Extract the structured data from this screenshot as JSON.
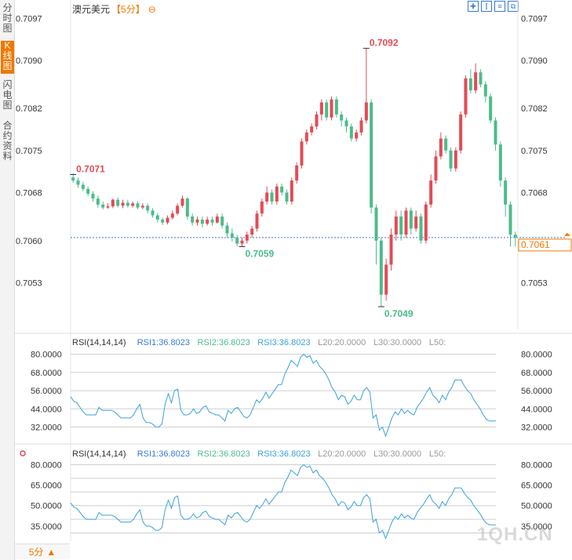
{
  "sidebar": {
    "tabs": [
      {
        "label": "分时图",
        "active": false
      },
      {
        "label": "K线图",
        "active": true
      },
      {
        "label": "闪电图",
        "active": false
      },
      {
        "label": "合约资料",
        "active": false
      }
    ]
  },
  "header": {
    "symbol": "澳元美元",
    "period": "【5分】",
    "zoom_symbol": "⊖"
  },
  "period_button": {
    "label": "5分",
    "arrow": "▲"
  },
  "watermark": "1QH.CN",
  "colors": {
    "up": "#e24b55",
    "down": "#4dbb8a",
    "rsi_line": "#3aa3d8",
    "accent": "#f07800"
  },
  "chart_data": [
    {
      "type": "candlestick",
      "title": "澳元美元【5分】",
      "ylim": [
        0.7046,
        0.7099
      ],
      "y_ticks_left": [
        "0.7097",
        "0.7090",
        "0.7082",
        "0.7075",
        "0.7068",
        "0.7060",
        "0.7053"
      ],
      "y_ticks_right": [
        "0.7097",
        "0.7090",
        "0.7082",
        "0.7075",
        "0.7068",
        "0.7053"
      ],
      "current_price_label": "0.7061",
      "current_price": 0.70605,
      "annotations": [
        {
          "label": "0.7071",
          "x_index": 0,
          "price": 0.7071,
          "color": "up"
        },
        {
          "label": "0.7092",
          "x_index": 59,
          "price": 0.7092,
          "color": "up"
        },
        {
          "label": "0.7059",
          "x_index": 34,
          "price": 0.7059,
          "color": "down"
        },
        {
          "label": "0.7049",
          "x_index": 62,
          "price": 0.7049,
          "color": "down"
        }
      ],
      "candles": [
        [
          0.70705,
          0.707,
          0.70712,
          0.70696
        ],
        [
          0.707,
          0.70693,
          0.70705,
          0.70688
        ],
        [
          0.70693,
          0.70686,
          0.70698,
          0.70682
        ],
        [
          0.70686,
          0.70678,
          0.7069,
          0.70674
        ],
        [
          0.70678,
          0.7067,
          0.70682,
          0.70665
        ],
        [
          0.7067,
          0.7066,
          0.70675,
          0.70655
        ],
        [
          0.7066,
          0.70655,
          0.70665,
          0.70652
        ],
        [
          0.70655,
          0.70657,
          0.70662,
          0.70653
        ],
        [
          0.70657,
          0.70668,
          0.7067,
          0.70654
        ],
        [
          0.70668,
          0.70658,
          0.70672,
          0.70655
        ],
        [
          0.70658,
          0.70663,
          0.70668,
          0.70654
        ],
        [
          0.70663,
          0.70658,
          0.70668,
          0.70655
        ],
        [
          0.70658,
          0.70662,
          0.70665,
          0.70655
        ],
        [
          0.70662,
          0.70655,
          0.70666,
          0.70652
        ],
        [
          0.70655,
          0.70658,
          0.70662,
          0.70652
        ],
        [
          0.70658,
          0.7065,
          0.70662,
          0.70645
        ],
        [
          0.7065,
          0.70642,
          0.70654,
          0.70638
        ],
        [
          0.70642,
          0.70635,
          0.70646,
          0.7063
        ],
        [
          0.70635,
          0.7063,
          0.70638,
          0.70626
        ],
        [
          0.7063,
          0.70638,
          0.70642,
          0.70627
        ],
        [
          0.70638,
          0.70645,
          0.7065,
          0.70635
        ],
        [
          0.70645,
          0.70658,
          0.70662,
          0.70642
        ],
        [
          0.70658,
          0.7067,
          0.70675,
          0.70655
        ],
        [
          0.7067,
          0.7064,
          0.70672,
          0.70635
        ],
        [
          0.7064,
          0.7063,
          0.70645,
          0.70625
        ],
        [
          0.7063,
          0.70635,
          0.7064,
          0.70625
        ],
        [
          0.70635,
          0.70628,
          0.7064,
          0.70622
        ],
        [
          0.70628,
          0.70635,
          0.7064,
          0.70625
        ],
        [
          0.70635,
          0.7063,
          0.7064,
          0.70625
        ],
        [
          0.7063,
          0.7064,
          0.70645,
          0.70628
        ],
        [
          0.7064,
          0.70625,
          0.70645,
          0.7062
        ],
        [
          0.70625,
          0.70612,
          0.7063,
          0.70605
        ],
        [
          0.70612,
          0.70605,
          0.7062,
          0.70598
        ],
        [
          0.70605,
          0.70595,
          0.7061,
          0.7059
        ],
        [
          0.70595,
          0.706,
          0.70605,
          0.7059
        ],
        [
          0.706,
          0.7061,
          0.70615,
          0.70595
        ],
        [
          0.7061,
          0.7062,
          0.70625,
          0.70605
        ],
        [
          0.7062,
          0.70645,
          0.7065,
          0.70615
        ],
        [
          0.70645,
          0.70665,
          0.7067,
          0.7064
        ],
        [
          0.70665,
          0.7068,
          0.7069,
          0.7066
        ],
        [
          0.7068,
          0.70665,
          0.70685,
          0.7066
        ],
        [
          0.70665,
          0.7069,
          0.70695,
          0.7066
        ],
        [
          0.7069,
          0.7068,
          0.70695,
          0.70675
        ],
        [
          0.7068,
          0.70665,
          0.70685,
          0.7066
        ],
        [
          0.70665,
          0.707,
          0.70705,
          0.7066
        ],
        [
          0.707,
          0.70725,
          0.7073,
          0.70695
        ],
        [
          0.70725,
          0.70765,
          0.7077,
          0.7072
        ],
        [
          0.70765,
          0.7078,
          0.70785,
          0.7076
        ],
        [
          0.7078,
          0.7079,
          0.70795,
          0.70775
        ],
        [
          0.7079,
          0.7081,
          0.70815,
          0.70785
        ],
        [
          0.7081,
          0.7083,
          0.70835,
          0.708
        ],
        [
          0.7083,
          0.70805,
          0.70835,
          0.708
        ],
        [
          0.70805,
          0.70835,
          0.7084,
          0.708
        ],
        [
          0.70835,
          0.7081,
          0.7084,
          0.70805
        ],
        [
          0.7081,
          0.708,
          0.70815,
          0.7079
        ],
        [
          0.708,
          0.7079,
          0.70805,
          0.7078
        ],
        [
          0.7079,
          0.7077,
          0.70795,
          0.70765
        ],
        [
          0.7077,
          0.7078,
          0.70785,
          0.70765
        ],
        [
          0.7078,
          0.708,
          0.70805,
          0.70775
        ],
        [
          0.708,
          0.7083,
          0.7092,
          0.70795
        ],
        [
          0.7083,
          0.70655,
          0.70835,
          0.70645
        ],
        [
          0.70655,
          0.706,
          0.7066,
          0.7056
        ],
        [
          0.706,
          0.7051,
          0.70605,
          0.7049
        ],
        [
          0.7051,
          0.7056,
          0.7057,
          0.705
        ],
        [
          0.7056,
          0.7061,
          0.7062,
          0.7055
        ],
        [
          0.7061,
          0.7064,
          0.7065,
          0.706
        ],
        [
          0.7064,
          0.7061,
          0.7065,
          0.706
        ],
        [
          0.7061,
          0.7065,
          0.70655,
          0.70605
        ],
        [
          0.7065,
          0.7062,
          0.70655,
          0.7061
        ],
        [
          0.7062,
          0.7064,
          0.7065,
          0.70615
        ],
        [
          0.7064,
          0.706,
          0.70645,
          0.70595
        ],
        [
          0.706,
          0.7066,
          0.70665,
          0.70595
        ],
        [
          0.7066,
          0.707,
          0.7071,
          0.70655
        ],
        [
          0.707,
          0.7074,
          0.7075,
          0.70695
        ],
        [
          0.7074,
          0.7077,
          0.7078,
          0.70735
        ],
        [
          0.7077,
          0.7075,
          0.70775,
          0.70745
        ],
        [
          0.7075,
          0.7072,
          0.70755,
          0.70715
        ],
        [
          0.7072,
          0.7075,
          0.70755,
          0.70715
        ],
        [
          0.7075,
          0.7081,
          0.70815,
          0.70745
        ],
        [
          0.7081,
          0.7087,
          0.70875,
          0.70805
        ],
        [
          0.7087,
          0.7085,
          0.70885,
          0.70845
        ],
        [
          0.7085,
          0.7088,
          0.70895,
          0.70845
        ],
        [
          0.7088,
          0.7086,
          0.70885,
          0.70855
        ],
        [
          0.7086,
          0.7084,
          0.70865,
          0.7083
        ],
        [
          0.7084,
          0.708,
          0.70845,
          0.70795
        ],
        [
          0.708,
          0.7076,
          0.70805,
          0.7075
        ],
        [
          0.7076,
          0.707,
          0.70765,
          0.7069
        ],
        [
          0.707,
          0.7066,
          0.70705,
          0.7064
        ],
        [
          0.7066,
          0.7061,
          0.70665,
          0.7059
        ],
        [
          0.7061,
          0.70605,
          0.70615,
          0.7059
        ]
      ]
    },
    {
      "type": "line",
      "title": "RSI(14,14,14)",
      "legend": [
        "RSI(14,14,14)",
        "RSI1:36.8023",
        "RSI2:36.8023",
        "RSI3:36.8023",
        "L20:20.0000",
        "L30:30.0000",
        "L50:"
      ],
      "ylim": [
        24,
        86
      ],
      "y_ticks": [
        "80.0000",
        "68.0000",
        "56.0000",
        "44.0000",
        "32.0000"
      ],
      "gridlines": [
        80,
        68,
        56,
        44,
        32
      ],
      "series": [
        {
          "name": "RSI1",
          "values": [
            52,
            49,
            48,
            45,
            42,
            40,
            40,
            40,
            40,
            45,
            43,
            43,
            43,
            43,
            42,
            40,
            38,
            38,
            38,
            38,
            40,
            44,
            47,
            38,
            35,
            35,
            34,
            32,
            32,
            34,
            47,
            54,
            48,
            56,
            57,
            43,
            40,
            40,
            41,
            44,
            41,
            42,
            45,
            46,
            42,
            41,
            40,
            40,
            38,
            36,
            43,
            41,
            44,
            45,
            42,
            39,
            38,
            40,
            45,
            50,
            48,
            51,
            55,
            51,
            54,
            57,
            60,
            60,
            67,
            71,
            76,
            74,
            72,
            78,
            80,
            78,
            79,
            74,
            76,
            72,
            70,
            67,
            63,
            58,
            55,
            50,
            53,
            52,
            47,
            49,
            53,
            50,
            50,
            56,
            58,
            55,
            38,
            40,
            30,
            32,
            26,
            32,
            38,
            42,
            40,
            44,
            41,
            43,
            41,
            40,
            45,
            48,
            51,
            55,
            58,
            53,
            51,
            48,
            53,
            50,
            55,
            58,
            63,
            63,
            63,
            59,
            56,
            54,
            50,
            47,
            44,
            40,
            37,
            36,
            36,
            36
          ]
        }
      ]
    },
    {
      "type": "line",
      "title": "RSI(14,14,14)",
      "legend": [
        "RSI(14,14,14)",
        "RSI1:36.8023",
        "RSI2:36.8023",
        "RSI3:36.8023",
        "L20:20.0000",
        "L30:30.0000",
        "L50:"
      ],
      "ylim": [
        24,
        86
      ],
      "y_ticks": [
        "80.0000",
        "65.0000",
        "50.0000",
        "35.0000"
      ],
      "gridlines": [
        80,
        70,
        60,
        50,
        40,
        30
      ],
      "series": [
        {
          "name": "RSI1",
          "values": [
            52,
            49,
            48,
            45,
            42,
            40,
            40,
            40,
            40,
            45,
            43,
            43,
            43,
            43,
            42,
            40,
            38,
            38,
            38,
            38,
            40,
            44,
            47,
            38,
            35,
            35,
            34,
            32,
            32,
            34,
            47,
            54,
            48,
            56,
            57,
            43,
            40,
            40,
            41,
            44,
            41,
            42,
            45,
            46,
            42,
            41,
            40,
            40,
            38,
            36,
            43,
            41,
            44,
            45,
            42,
            39,
            38,
            40,
            45,
            50,
            48,
            51,
            55,
            51,
            54,
            57,
            60,
            60,
            67,
            71,
            76,
            74,
            72,
            78,
            80,
            78,
            79,
            74,
            76,
            72,
            70,
            67,
            63,
            58,
            55,
            50,
            53,
            52,
            47,
            49,
            53,
            50,
            50,
            56,
            58,
            55,
            38,
            40,
            30,
            32,
            26,
            32,
            38,
            42,
            40,
            44,
            41,
            43,
            41,
            40,
            45,
            48,
            51,
            55,
            58,
            53,
            51,
            48,
            53,
            50,
            55,
            58,
            63,
            63,
            63,
            59,
            56,
            54,
            50,
            47,
            44,
            40,
            37,
            36,
            36,
            36
          ]
        }
      ]
    }
  ]
}
